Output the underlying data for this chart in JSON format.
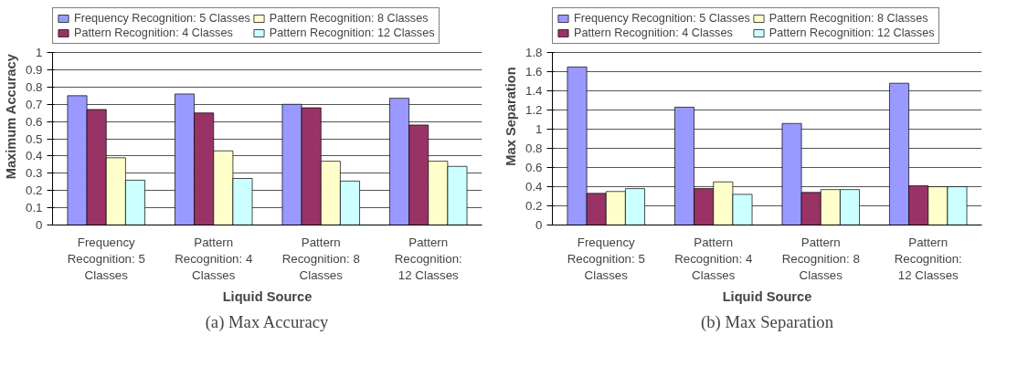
{
  "chart_data": [
    {
      "type": "bar",
      "xlabel": "Liquid Source",
      "ylabel": "Maximum Accuracy",
      "categories": [
        "Frequency Recognition: 5 Classes",
        "Pattern Recognition: 4 Classes",
        "Pattern Recognition: 8 Classes",
        "Pattern Recognition: 12 Classes"
      ],
      "series": [
        {
          "name": "Frequency Recognition: 5 Classes",
          "color": "#9999ff",
          "values": [
            0.75,
            0.76,
            0.7,
            0.735
          ]
        },
        {
          "name": "Pattern Recognition: 4 Classes",
          "color": "#993366",
          "values": [
            0.67,
            0.65,
            0.68,
            0.58
          ]
        },
        {
          "name": "Pattern Recognition: 8 Classes",
          "color": "#ffffcc",
          "values": [
            0.39,
            0.43,
            0.37,
            0.37
          ]
        },
        {
          "name": "Pattern Recognition: 12 Classes",
          "color": "#ccffff",
          "values": [
            0.26,
            0.27,
            0.255,
            0.34
          ]
        }
      ],
      "ylim": [
        0,
        1
      ],
      "yticks": [
        0,
        0.1,
        0.2,
        0.3,
        0.4,
        0.5,
        0.6,
        0.7,
        0.8,
        0.9,
        1
      ],
      "grid": "y",
      "legend": "top",
      "annotations": [
        "(a) Max Accuracy"
      ]
    },
    {
      "type": "bar",
      "xlabel": "Liquid Source",
      "ylabel": "Max Separation",
      "categories": [
        "Frequency Recognition: 5 Classes",
        "Pattern Recognition: 4 Classes",
        "Pattern Recognition: 8 Classes",
        "Pattern Recognition: 12 Classes"
      ],
      "series": [
        {
          "name": "Frequency Recognition: 5 Classes",
          "color": "#9999ff",
          "values": [
            1.65,
            1.23,
            1.06,
            1.48
          ]
        },
        {
          "name": "Pattern Recognition: 4 Classes",
          "color": "#993366",
          "values": [
            0.33,
            0.38,
            0.34,
            0.41
          ]
        },
        {
          "name": "Pattern Recognition: 8 Classes",
          "color": "#ffffcc",
          "values": [
            0.35,
            0.45,
            0.37,
            0.4
          ]
        },
        {
          "name": "Pattern Recognition: 12 Classes",
          "color": "#ccffff",
          "values": [
            0.38,
            0.32,
            0.37,
            0.4
          ]
        }
      ],
      "ylim": [
        0,
        1.8
      ],
      "yticks": [
        0,
        0.2,
        0.4,
        0.6,
        0.8,
        1,
        1.2,
        1.4,
        1.6,
        1.8
      ],
      "grid": "y",
      "legend": "top",
      "annotations": [
        "(b) Max Separation"
      ]
    }
  ]
}
